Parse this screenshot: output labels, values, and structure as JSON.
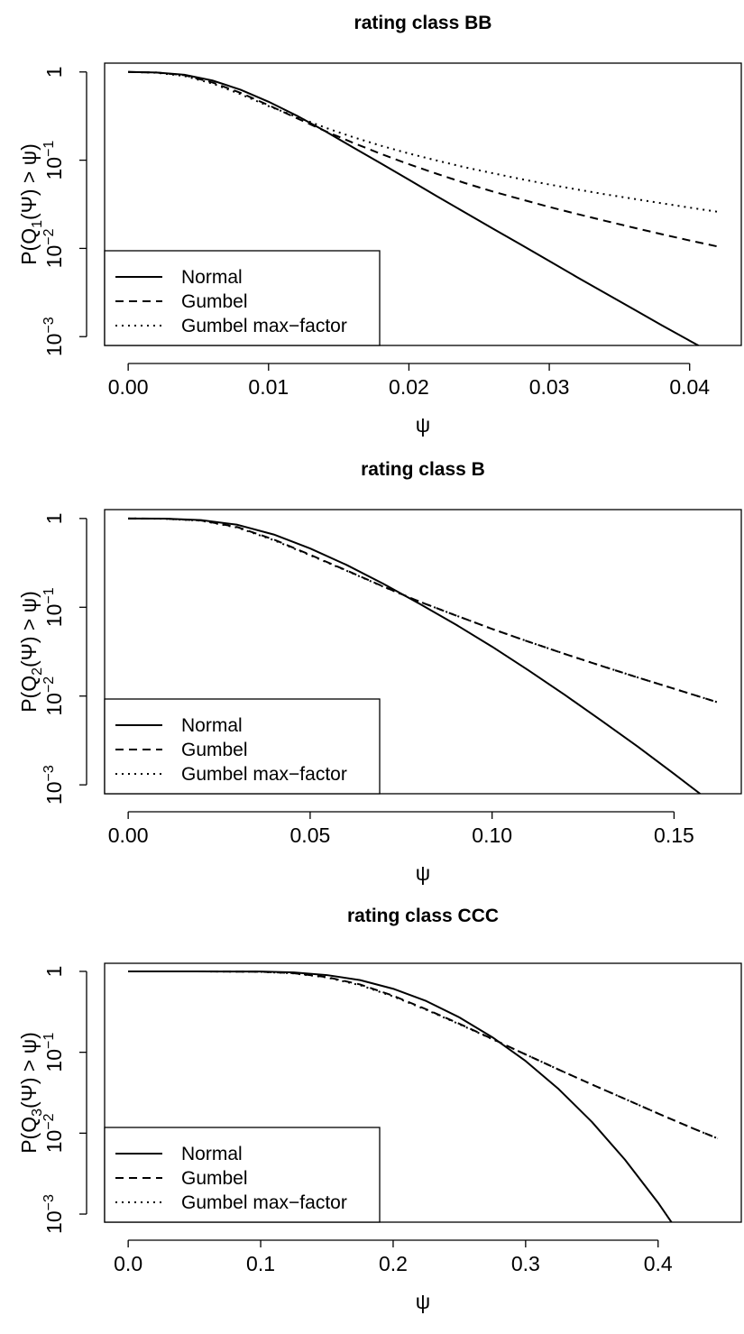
{
  "chart_data": [
    {
      "type": "line",
      "title": "rating class BB",
      "xlabel": "ψ",
      "ylabel": {
        "prefix": "P(Q",
        "sub": "1",
        "suffix": "(Ψ) > ψ)"
      },
      "xlim": [
        0,
        0.042
      ],
      "ylim_log10": [
        -3.1,
        0.1
      ],
      "y_scale": "log",
      "xticks": [
        {
          "v": 0,
          "label": "0.00"
        },
        {
          "v": 0.01,
          "label": "0.01"
        },
        {
          "v": 0.02,
          "label": "0.02"
        },
        {
          "v": 0.03,
          "label": "0.03"
        },
        {
          "v": 0.04,
          "label": "0.04"
        }
      ],
      "yticks": [
        {
          "v": 1,
          "base": "1",
          "exp": ""
        },
        {
          "v": 0.1,
          "base": "10",
          "exp": "−1"
        },
        {
          "v": 0.01,
          "base": "10",
          "exp": "−2"
        },
        {
          "v": 0.001,
          "base": "10",
          "exp": "−3"
        }
      ],
      "legend": {
        "position": "bottom-left",
        "entries": [
          "Normal",
          "Gumbel",
          "Gumbel max−factor"
        ]
      },
      "series": [
        {
          "name": "Normal",
          "style": "solid",
          "x": [
            0,
            0.002,
            0.004,
            0.006,
            0.008,
            0.01,
            0.012,
            0.014,
            0.016,
            0.018,
            0.02,
            0.022,
            0.024,
            0.026,
            0.028,
            0.03,
            0.032,
            0.034,
            0.036,
            0.038,
            0.04,
            0.042
          ],
          "y": [
            1.0,
            0.985,
            0.93,
            0.8,
            0.63,
            0.46,
            0.32,
            0.215,
            0.14,
            0.092,
            0.06,
            0.039,
            0.0255,
            0.0167,
            0.011,
            0.0072,
            0.0047,
            0.0031,
            0.00205,
            0.00135,
            0.0009,
            0.0006
          ]
        },
        {
          "name": "Gumbel",
          "style": "dashed",
          "x": [
            0,
            0.002,
            0.004,
            0.006,
            0.008,
            0.01,
            0.012,
            0.014,
            0.016,
            0.018,
            0.02,
            0.022,
            0.024,
            0.026,
            0.028,
            0.03,
            0.032,
            0.034,
            0.036,
            0.038,
            0.04,
            0.042
          ],
          "y": [
            1.0,
            0.985,
            0.92,
            0.76,
            0.58,
            0.42,
            0.3,
            0.215,
            0.158,
            0.118,
            0.09,
            0.07,
            0.055,
            0.044,
            0.036,
            0.0295,
            0.0245,
            0.0205,
            0.0172,
            0.0145,
            0.0123,
            0.0105
          ]
        },
        {
          "name": "Gumbel max−factor",
          "style": "dotted",
          "x": [
            0,
            0.002,
            0.004,
            0.006,
            0.008,
            0.01,
            0.012,
            0.014,
            0.016,
            0.018,
            0.02,
            0.022,
            0.024,
            0.026,
            0.028,
            0.03,
            0.032,
            0.034,
            0.036,
            0.038,
            0.04,
            0.042
          ],
          "y": [
            1.0,
            0.98,
            0.9,
            0.74,
            0.56,
            0.41,
            0.31,
            0.235,
            0.183,
            0.146,
            0.119,
            0.099,
            0.083,
            0.071,
            0.061,
            0.053,
            0.0465,
            0.041,
            0.0365,
            0.0325,
            0.029,
            0.026
          ]
        }
      ]
    },
    {
      "type": "line",
      "title": "rating class B",
      "xlabel": "ψ",
      "ylabel": {
        "prefix": "P(Q",
        "sub": "2",
        "suffix": "(Ψ) > ψ)"
      },
      "xlim": [
        0,
        0.162
      ],
      "ylim_log10": [
        -3.1,
        0.1
      ],
      "y_scale": "log",
      "xticks": [
        {
          "v": 0,
          "label": "0.00"
        },
        {
          "v": 0.05,
          "label": "0.05"
        },
        {
          "v": 0.1,
          "label": "0.10"
        },
        {
          "v": 0.15,
          "label": "0.15"
        }
      ],
      "yticks": [
        {
          "v": 1,
          "base": "1",
          "exp": ""
        },
        {
          "v": 0.1,
          "base": "10",
          "exp": "−1"
        },
        {
          "v": 0.01,
          "base": "10",
          "exp": "−2"
        },
        {
          "v": 0.001,
          "base": "10",
          "exp": "−3"
        }
      ],
      "legend": {
        "position": "bottom-left",
        "entries": [
          "Normal",
          "Gumbel",
          "Gumbel max−factor"
        ]
      },
      "series": [
        {
          "name": "Normal",
          "style": "solid",
          "x": [
            0,
            0.01,
            0.02,
            0.03,
            0.04,
            0.05,
            0.06,
            0.07,
            0.08,
            0.09,
            0.1,
            0.11,
            0.12,
            0.13,
            0.14,
            0.15,
            0.162
          ],
          "y": [
            1.0,
            0.995,
            0.96,
            0.85,
            0.66,
            0.46,
            0.3,
            0.185,
            0.11,
            0.064,
            0.036,
            0.0195,
            0.0103,
            0.0053,
            0.0027,
            0.00133,
            0.00056
          ]
        },
        {
          "name": "Gumbel",
          "style": "dashed",
          "x": [
            0,
            0.01,
            0.02,
            0.03,
            0.04,
            0.05,
            0.06,
            0.07,
            0.08,
            0.09,
            0.1,
            0.11,
            0.12,
            0.13,
            0.14,
            0.15,
            0.162
          ],
          "y": [
            1.0,
            0.995,
            0.95,
            0.8,
            0.58,
            0.39,
            0.26,
            0.172,
            0.116,
            0.081,
            0.057,
            0.041,
            0.0298,
            0.0219,
            0.0162,
            0.0121,
            0.0085
          ]
        },
        {
          "name": "Gumbel max−factor",
          "style": "dotted",
          "x": [
            0,
            0.01,
            0.02,
            0.03,
            0.04,
            0.05,
            0.06,
            0.07,
            0.08,
            0.09,
            0.1,
            0.11,
            0.12,
            0.13,
            0.14,
            0.15,
            0.162
          ],
          "y": [
            1.0,
            0.993,
            0.945,
            0.79,
            0.57,
            0.385,
            0.258,
            0.171,
            0.116,
            0.081,
            0.057,
            0.041,
            0.0298,
            0.0219,
            0.0162,
            0.0121,
            0.0085
          ]
        }
      ]
    },
    {
      "type": "line",
      "title": "rating class CCC",
      "xlabel": "ψ",
      "ylabel": {
        "prefix": "P(Q",
        "sub": "3",
        "suffix": "(Ψ) > ψ)"
      },
      "xlim": [
        0,
        0.445
      ],
      "ylim_log10": [
        -3.1,
        0.1
      ],
      "y_scale": "log",
      "xticks": [
        {
          "v": 0,
          "label": "0.0"
        },
        {
          "v": 0.1,
          "label": "0.1"
        },
        {
          "v": 0.2,
          "label": "0.2"
        },
        {
          "v": 0.3,
          "label": "0.3"
        },
        {
          "v": 0.4,
          "label": "0.4"
        }
      ],
      "yticks": [
        {
          "v": 1,
          "base": "1",
          "exp": ""
        },
        {
          "v": 0.1,
          "base": "10",
          "exp": "−1"
        },
        {
          "v": 0.01,
          "base": "10",
          "exp": "−2"
        },
        {
          "v": 0.001,
          "base": "10",
          "exp": "−3"
        }
      ],
      "legend": {
        "position": "bottom-left",
        "entries": [
          "Normal",
          "Gumbel",
          "Gumbel max−factor"
        ]
      },
      "series": [
        {
          "name": "Normal",
          "style": "solid",
          "x": [
            0,
            0.05,
            0.1,
            0.125,
            0.15,
            0.175,
            0.2,
            0.225,
            0.25,
            0.275,
            0.3,
            0.325,
            0.35,
            0.375,
            0.4,
            0.425,
            0.445
          ],
          "y": [
            1.0,
            1.0,
            0.995,
            0.97,
            0.9,
            0.78,
            0.61,
            0.43,
            0.27,
            0.153,
            0.078,
            0.035,
            0.0138,
            0.0047,
            0.00138,
            0.00035,
            0.0001
          ]
        },
        {
          "name": "Gumbel",
          "style": "dashed",
          "x": [
            0,
            0.05,
            0.1,
            0.125,
            0.15,
            0.175,
            0.2,
            0.225,
            0.25,
            0.275,
            0.3,
            0.325,
            0.35,
            0.375,
            0.4,
            0.425,
            0.445
          ],
          "y": [
            1.0,
            1.0,
            0.99,
            0.95,
            0.85,
            0.69,
            0.5,
            0.34,
            0.225,
            0.146,
            0.094,
            0.061,
            0.04,
            0.0265,
            0.0175,
            0.0117,
            0.0086
          ]
        },
        {
          "name": "Gumbel max−factor",
          "style": "dotted",
          "x": [
            0,
            0.05,
            0.1,
            0.125,
            0.15,
            0.175,
            0.2,
            0.225,
            0.25,
            0.275,
            0.3,
            0.325,
            0.35,
            0.375,
            0.4,
            0.425,
            0.445
          ],
          "y": [
            1.0,
            1.0,
            0.988,
            0.945,
            0.84,
            0.675,
            0.49,
            0.335,
            0.222,
            0.145,
            0.094,
            0.061,
            0.04,
            0.0265,
            0.0175,
            0.0117,
            0.0086
          ]
        }
      ]
    }
  ]
}
